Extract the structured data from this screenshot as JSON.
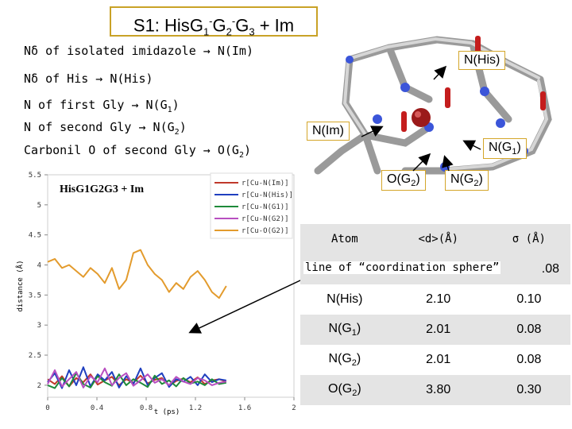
{
  "title": {
    "text": "S1: His",
    "g1": "G",
    "s1": "1",
    "sup1": "-",
    "g2": "G",
    "s2": "2",
    "sup2": "-",
    "rest": "G",
    "s3": "3",
    "tail": " + Im"
  },
  "definitions": [
    {
      "text": "Nδ of isolated imidazole → N(Im)"
    },
    {
      "text": "Nδ of His → N(His)"
    },
    {
      "text": "N of first Gly → N(G",
      "sub": "1",
      "close": ")"
    },
    {
      "text": "N of second Gly → N(G",
      "sub": "2",
      "close": ")"
    },
    {
      "text": "Carbonil O of second Gly → O(G",
      "sub": "2",
      "close": ")"
    }
  ],
  "callouts": {
    "his": "N(His)",
    "im": "N(Im)",
    "g1": "N(G",
    "g1_sub": "1",
    "o2": "O(G",
    "o2_sub": "2",
    "n2": "N(G",
    "n2_sub": "2",
    "close": ")"
  },
  "note": "line of “coordination sphere”",
  "table": {
    "headers": [
      "Atom",
      "<d>(Å)",
      "σ (Å)"
    ],
    "hidden_value": ".08",
    "rows": [
      {
        "atom": "N(His)",
        "d": "2.10",
        "s": "0.10"
      },
      {
        "atom": "N(G",
        "sub": "1",
        "d": "2.01",
        "s": "0.08"
      },
      {
        "atom": "N(G",
        "sub": "2",
        "d": "2.01",
        "s": "0.08"
      },
      {
        "atom": "O(G",
        "sub": "2",
        "d": "3.80",
        "s": "0.30"
      }
    ]
  },
  "chart_data": {
    "type": "line",
    "title": "HisG1G2G3 + Im",
    "xlabel": "t (ps)",
    "ylabel": "distance (Å)",
    "xlim": [
      0,
      2
    ],
    "ylim": [
      1.8,
      5.5
    ],
    "xticks": [
      "0",
      "0.4",
      "0.8",
      "1.2",
      "1.6",
      "2"
    ],
    "yticks": [
      "2",
      "2.5",
      "3",
      "3.5",
      "4",
      "4.5",
      "5",
      "5.5"
    ],
    "legend_position": "top-right",
    "series": [
      {
        "name": "r[Cu-N(Im)]",
        "color": "#c0392b",
        "y": [
          2.1,
          2.02,
          2.15,
          1.98,
          2.12,
          2.05,
          2.18,
          2.01,
          2.08,
          2.14,
          2.0,
          2.1,
          2.04,
          2.16,
          2.03,
          2.09,
          2.12,
          1.99,
          2.07,
          2.11,
          2.05,
          2.13,
          2.02,
          2.08,
          2.1,
          2.06
        ]
      },
      {
        "name": "r[Cu-N(His)]",
        "color": "#1f3fbf",
        "y": [
          2.05,
          2.2,
          1.95,
          2.25,
          2.0,
          2.3,
          1.98,
          2.18,
          2.08,
          2.22,
          1.96,
          2.15,
          2.02,
          2.28,
          2.0,
          2.12,
          2.2,
          1.97,
          2.1,
          2.06,
          2.14,
          2.0,
          2.18,
          2.05,
          2.1,
          2.08
        ]
      },
      {
        "name": "r[Cu-N(G1)]",
        "color": "#1e8a3a",
        "y": [
          2.0,
          1.95,
          2.12,
          1.98,
          2.2,
          2.02,
          1.96,
          2.15,
          2.05,
          1.99,
          2.18,
          2.0,
          2.1,
          2.04,
          1.97,
          2.16,
          2.02,
          2.08,
          1.98,
          2.12,
          2.03,
          2.06,
          2.0,
          2.1,
          2.02,
          2.04
        ]
      },
      {
        "name": "r[Cu-N(G2)]",
        "color": "#b84fc0",
        "y": [
          2.02,
          2.25,
          1.98,
          2.1,
          2.22,
          1.96,
          2.15,
          2.05,
          2.28,
          2.0,
          2.12,
          2.2,
          1.99,
          2.08,
          2.18,
          2.04,
          2.1,
          2.0,
          2.14,
          2.06,
          2.02,
          2.12,
          2.08,
          2.0,
          2.04,
          2.06
        ]
      },
      {
        "name": "r[Cu-O(G2)]",
        "color": "#e39b2d",
        "y": [
          4.05,
          4.1,
          3.95,
          4.0,
          3.9,
          3.8,
          3.95,
          3.85,
          3.7,
          3.95,
          3.6,
          3.75,
          4.2,
          4.25,
          4.0,
          3.85,
          3.75,
          3.55,
          3.7,
          3.6,
          3.8,
          3.9,
          3.75,
          3.55,
          3.45,
          3.65
        ]
      }
    ]
  },
  "colors": {
    "accent_border": "#d4a62a",
    "arrow": "#000000",
    "table_band": "#e4e4e4"
  }
}
